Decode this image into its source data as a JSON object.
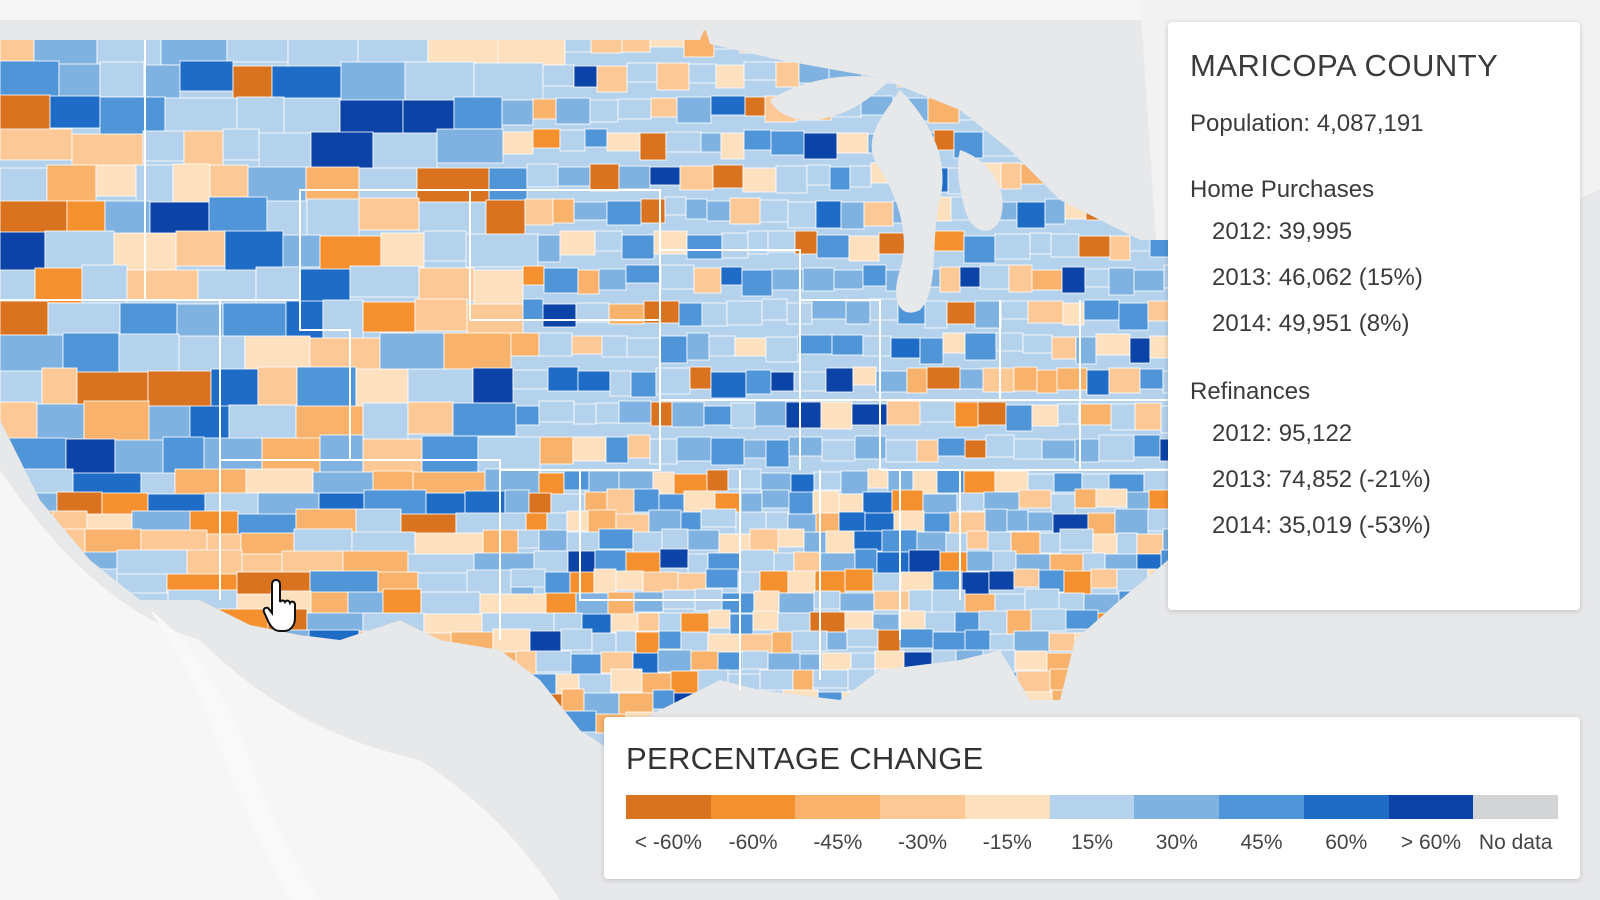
{
  "info": {
    "county": "MARICOPA COUNTY",
    "population_label": "Population:",
    "population_value": "4,087,191",
    "sections": [
      {
        "title": "Home Purchases",
        "rows": [
          {
            "year": "2012:",
            "value": "39,995"
          },
          {
            "year": "2013:",
            "value": "46,062 (15%)"
          },
          {
            "year": "2014:",
            "value": "49,951 (8%)"
          }
        ]
      },
      {
        "title": "Refinances",
        "rows": [
          {
            "year": "2012:",
            "value": "95,122"
          },
          {
            "year": "2013:",
            "value": "74,852 (-21%)"
          },
          {
            "year": "2014:",
            "value": "35,019 (-53%)"
          }
        ]
      }
    ]
  },
  "legend": {
    "title": "PERCENTAGE CHANGE",
    "items": [
      {
        "label": "< -60%",
        "color": "#d9731f"
      },
      {
        "label": "-60%",
        "color": "#f5902f"
      },
      {
        "label": "-45%",
        "color": "#f8b26b"
      },
      {
        "label": "-30%",
        "color": "#fcc996"
      },
      {
        "label": "-15%",
        "color": "#fde0bd"
      },
      {
        "label": "15%",
        "color": "#b4d2ec"
      },
      {
        "label": "30%",
        "color": "#7fb2e0"
      },
      {
        "label": "45%",
        "color": "#4f95d8"
      },
      {
        "label": "60%",
        "color": "#1f6cc7"
      },
      {
        "label": "> 60%",
        "color": "#0b43a6"
      },
      {
        "label": "No data",
        "color": "#d3d4d6"
      }
    ]
  },
  "map": {
    "land_color": "#f6f6f6",
    "water_color": "#e7e8ea",
    "hovered_county": "Maricopa County"
  }
}
